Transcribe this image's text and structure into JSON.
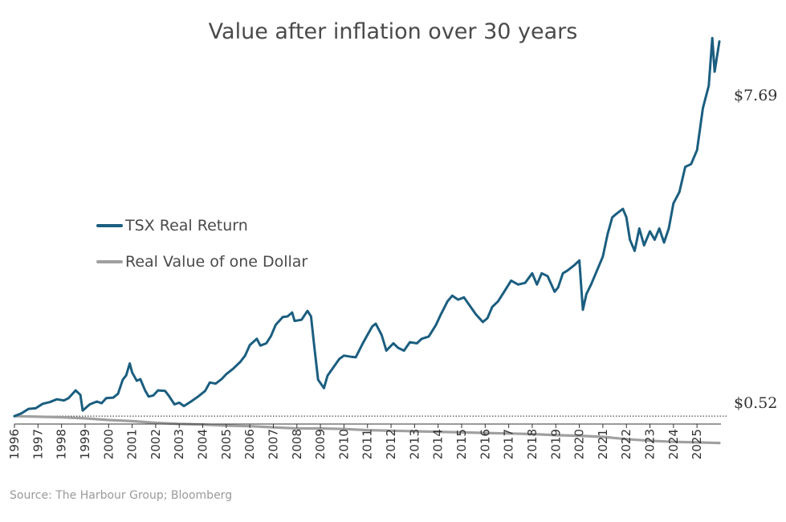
{
  "chart_data": {
    "type": "line",
    "title": "Value after inflation over 30 years",
    "xlabel": "",
    "ylabel": "",
    "x_ticks": [
      "1996",
      "1997",
      "1998",
      "1999",
      "2000",
      "2001",
      "2002",
      "2003",
      "2004",
      "2005",
      "2006",
      "2007",
      "2008",
      "2009",
      "2010",
      "2011",
      "2012",
      "2013",
      "2014",
      "2015",
      "2016",
      "2017",
      "2018",
      "2019",
      "2020",
      "2021",
      "2022",
      "2023",
      "2024",
      "2025"
    ],
    "x_range": [
      1996.0,
      2025.95
    ],
    "y_range": [
      0.4,
      8.0
    ],
    "grid": false,
    "reference_line": 1.0,
    "legend": {
      "position": "left-middle"
    },
    "series": [
      {
        "name": "TSX Real Return",
        "color": "#1b5e80",
        "end_label": "$7.69",
        "points": [
          [
            1996.0,
            1.0
          ],
          [
            1996.3,
            1.05
          ],
          [
            1996.6,
            1.13
          ],
          [
            1996.9,
            1.14
          ],
          [
            1997.2,
            1.22
          ],
          [
            1997.5,
            1.25
          ],
          [
            1997.8,
            1.3
          ],
          [
            1998.1,
            1.28
          ],
          [
            1998.3,
            1.32
          ],
          [
            1998.6,
            1.46
          ],
          [
            1998.8,
            1.38
          ],
          [
            1998.9,
            1.1
          ],
          [
            1999.2,
            1.21
          ],
          [
            1999.5,
            1.26
          ],
          [
            1999.7,
            1.23
          ],
          [
            1999.9,
            1.32
          ],
          [
            2000.2,
            1.33
          ],
          [
            2000.4,
            1.4
          ],
          [
            2000.6,
            1.65
          ],
          [
            2000.75,
            1.73
          ],
          [
            2000.9,
            1.94
          ],
          [
            2001.0,
            1.78
          ],
          [
            2001.2,
            1.63
          ],
          [
            2001.35,
            1.66
          ],
          [
            2001.55,
            1.46
          ],
          [
            2001.7,
            1.35
          ],
          [
            2001.9,
            1.37
          ],
          [
            2002.1,
            1.46
          ],
          [
            2002.4,
            1.45
          ],
          [
            2002.55,
            1.37
          ],
          [
            2002.8,
            1.21
          ],
          [
            2003.0,
            1.24
          ],
          [
            2003.2,
            1.18
          ],
          [
            2003.5,
            1.26
          ],
          [
            2003.8,
            1.35
          ],
          [
            2004.1,
            1.45
          ],
          [
            2004.3,
            1.6
          ],
          [
            2004.55,
            1.58
          ],
          [
            2004.8,
            1.66
          ],
          [
            2005.0,
            1.75
          ],
          [
            2005.3,
            1.85
          ],
          [
            2005.6,
            1.97
          ],
          [
            2005.8,
            2.08
          ],
          [
            2006.0,
            2.27
          ],
          [
            2006.3,
            2.38
          ],
          [
            2006.45,
            2.26
          ],
          [
            2006.7,
            2.3
          ],
          [
            2006.9,
            2.43
          ],
          [
            2007.1,
            2.63
          ],
          [
            2007.4,
            2.77
          ],
          [
            2007.6,
            2.78
          ],
          [
            2007.8,
            2.85
          ],
          [
            2007.9,
            2.7
          ],
          [
            2008.2,
            2.72
          ],
          [
            2008.45,
            2.88
          ],
          [
            2008.6,
            2.78
          ],
          [
            2008.75,
            2.2
          ],
          [
            2008.9,
            1.65
          ],
          [
            2009.15,
            1.5
          ],
          [
            2009.3,
            1.72
          ],
          [
            2009.6,
            1.9
          ],
          [
            2009.8,
            2.02
          ],
          [
            2010.0,
            2.08
          ],
          [
            2010.3,
            2.06
          ],
          [
            2010.5,
            2.05
          ],
          [
            2010.8,
            2.3
          ],
          [
            2011.0,
            2.45
          ],
          [
            2011.2,
            2.6
          ],
          [
            2011.35,
            2.65
          ],
          [
            2011.6,
            2.45
          ],
          [
            2011.8,
            2.17
          ],
          [
            2012.1,
            2.3
          ],
          [
            2012.3,
            2.22
          ],
          [
            2012.55,
            2.17
          ],
          [
            2012.8,
            2.32
          ],
          [
            2013.1,
            2.3
          ],
          [
            2013.3,
            2.38
          ],
          [
            2013.6,
            2.42
          ],
          [
            2013.9,
            2.62
          ],
          [
            2014.1,
            2.8
          ],
          [
            2014.4,
            3.05
          ],
          [
            2014.6,
            3.15
          ],
          [
            2014.85,
            3.08
          ],
          [
            2015.1,
            3.12
          ],
          [
            2015.3,
            3.0
          ],
          [
            2015.6,
            2.82
          ],
          [
            2015.9,
            2.68
          ],
          [
            2016.1,
            2.75
          ],
          [
            2016.3,
            2.95
          ],
          [
            2016.55,
            3.05
          ],
          [
            2016.85,
            3.25
          ],
          [
            2017.1,
            3.42
          ],
          [
            2017.4,
            3.35
          ],
          [
            2017.7,
            3.38
          ],
          [
            2018.0,
            3.55
          ],
          [
            2018.2,
            3.35
          ],
          [
            2018.4,
            3.55
          ],
          [
            2018.65,
            3.5
          ],
          [
            2018.95,
            3.22
          ],
          [
            2019.1,
            3.3
          ],
          [
            2019.3,
            3.55
          ],
          [
            2019.5,
            3.6
          ],
          [
            2019.8,
            3.7
          ],
          [
            2020.0,
            3.78
          ],
          [
            2020.15,
            2.9
          ],
          [
            2020.3,
            3.18
          ],
          [
            2020.5,
            3.35
          ],
          [
            2020.8,
            3.65
          ],
          [
            2021.0,
            3.85
          ],
          [
            2021.2,
            4.25
          ],
          [
            2021.4,
            4.55
          ],
          [
            2021.6,
            4.62
          ],
          [
            2021.85,
            4.7
          ],
          [
            2022.0,
            4.55
          ],
          [
            2022.15,
            4.15
          ],
          [
            2022.35,
            3.95
          ],
          [
            2022.55,
            4.35
          ],
          [
            2022.75,
            4.05
          ],
          [
            2023.0,
            4.3
          ],
          [
            2023.2,
            4.15
          ],
          [
            2023.4,
            4.35
          ],
          [
            2023.6,
            4.1
          ],
          [
            2023.8,
            4.35
          ],
          [
            2024.0,
            4.8
          ],
          [
            2024.25,
            5.0
          ],
          [
            2024.5,
            5.45
          ],
          [
            2024.75,
            5.5
          ],
          [
            2025.0,
            5.75
          ],
          [
            2025.25,
            6.5
          ],
          [
            2025.5,
            6.9
          ],
          [
            2025.65,
            7.75
          ],
          [
            2025.75,
            7.15
          ],
          [
            2025.95,
            7.69
          ]
        ]
      },
      {
        "name": "Real Value of one Dollar",
        "color": "#a0a0a0",
        "end_label": "$0.52",
        "points": [
          [
            1996.0,
            1.0
          ],
          [
            1997.0,
            0.99
          ],
          [
            1998.0,
            0.98
          ],
          [
            1999.0,
            0.96
          ],
          [
            2000.0,
            0.93
          ],
          [
            2001.0,
            0.91
          ],
          [
            2002.0,
            0.88
          ],
          [
            2003.0,
            0.86
          ],
          [
            2004.0,
            0.85
          ],
          [
            2005.0,
            0.83
          ],
          [
            2006.0,
            0.82
          ],
          [
            2007.0,
            0.8
          ],
          [
            2008.0,
            0.78
          ],
          [
            2009.0,
            0.78
          ],
          [
            2010.0,
            0.77
          ],
          [
            2011.0,
            0.75
          ],
          [
            2012.0,
            0.74
          ],
          [
            2013.0,
            0.73
          ],
          [
            2014.0,
            0.72
          ],
          [
            2015.0,
            0.71
          ],
          [
            2016.0,
            0.7
          ],
          [
            2017.0,
            0.69
          ],
          [
            2018.0,
            0.68
          ],
          [
            2019.0,
            0.66
          ],
          [
            2020.0,
            0.65
          ],
          [
            2021.0,
            0.63
          ],
          [
            2022.0,
            0.59
          ],
          [
            2023.0,
            0.56
          ],
          [
            2024.0,
            0.54
          ],
          [
            2025.0,
            0.53
          ],
          [
            2025.95,
            0.52
          ]
        ]
      }
    ]
  },
  "legend": {
    "tsx_label": "TSX Real Return",
    "dollar_label": "Real Value of one Dollar"
  },
  "source": "Source: The Harbour Group; Bloomberg"
}
